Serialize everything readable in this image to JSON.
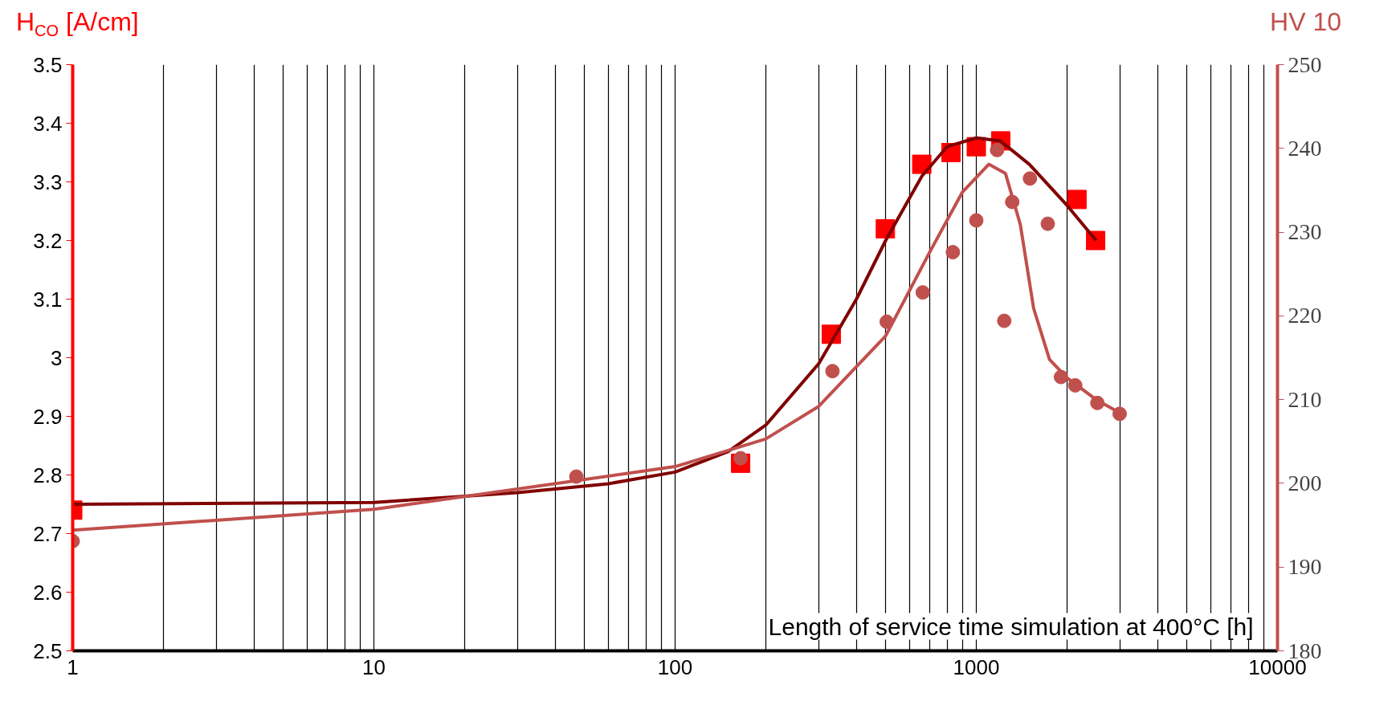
{
  "chart_data": {
    "type": "scatter",
    "xlabel": "Length of service time simulation at 400°C [h]",
    "ylabel": "H$_{CO}$ [A/cm]",
    "y2label": "HV 10",
    "log": "x",
    "grid": "x",
    "xlim": [
      1,
      10000
    ],
    "xticks": [
      1,
      {
        "value": 2,
        "label": null
      },
      {
        "value": 3,
        "label": null
      },
      {
        "value": 4,
        "label": null
      },
      {
        "value": 5,
        "label": null
      },
      {
        "value": 6,
        "label": null
      },
      {
        "value": 7,
        "label": null
      },
      {
        "value": 8,
        "label": null
      },
      {
        "value": 9,
        "label": null
      },
      10,
      {
        "value": 20,
        "label": null
      },
      {
        "value": 30,
        "label": null
      },
      {
        "value": 40,
        "label": null
      },
      {
        "value": 50,
        "label": null
      },
      {
        "value": 60,
        "label": null
      },
      {
        "value": 70,
        "label": null
      },
      {
        "value": 80,
        "label": null
      },
      {
        "value": 90,
        "label": null
      },
      100,
      {
        "value": 200,
        "label": null
      },
      {
        "value": 300,
        "label": null
      },
      {
        "value": 400,
        "label": null
      },
      {
        "value": 500,
        "label": null
      },
      {
        "value": 600,
        "label": null
      },
      {
        "value": 700,
        "label": null
      },
      {
        "value": 800,
        "label": null
      },
      {
        "value": 900,
        "label": null
      },
      1000,
      {
        "value": 2000,
        "label": null
      },
      {
        "value": 3000,
        "label": null
      },
      {
        "value": 4000,
        "label": null
      },
      {
        "value": 5000,
        "label": null
      },
      {
        "value": 6000,
        "label": null
      },
      {
        "value": 7000,
        "label": null
      },
      {
        "value": 8000,
        "label": null
      },
      {
        "value": 9000,
        "label": null
      },
      10000
    ],
    "ylim": [
      2.5,
      3.5
    ],
    "yticks": [
      2.5,
      2.6,
      2.7,
      2.8,
      2.9,
      {
        "value": 3.0,
        "label": "3"
      },
      3.1,
      3.2,
      3.3,
      3.4,
      3.5
    ],
    "y2lim": [
      180,
      250
    ],
    "y2ticks": [
      180,
      190,
      200,
      210,
      220,
      230,
      240,
      250
    ],
    "series": [
      {
        "type": "line",
        "color": "#800000",
        "marker": "none",
        "x": [
          1,
          10,
          30,
          60,
          100,
          150,
          200,
          300,
          400,
          500,
          660,
          800,
          1000,
          1200,
          1500,
          2000,
          2500
        ],
        "values": [
          2.75,
          2.753,
          2.77,
          2.785,
          2.805,
          2.84,
          2.885,
          2.99,
          3.1,
          3.2,
          3.31,
          3.36,
          3.375,
          3.37,
          3.33,
          3.26,
          3.2
        ]
      },
      {
        "type": "line",
        "axis": "y2",
        "color": "#c0504d",
        "marker": "none",
        "x": [
          1,
          10,
          100,
          200,
          300,
          500,
          700,
          900,
          1100,
          1250,
          1400,
          1550,
          1750,
          2000,
          2500,
          3000
        ],
        "values": [
          194.4,
          196.9,
          202,
          205.3,
          209.2,
          217.6,
          227.6,
          234.8,
          238.1,
          237,
          230.9,
          220.9,
          214.8,
          212.6,
          210,
          208.4
        ]
      },
      {
        "color": "#ff0000",
        "marker": "square",
        "x": [
          1,
          165,
          330,
          499,
          659,
          824,
          1000,
          1205,
          2159,
          2490
        ],
        "values": [
          2.74,
          2.82,
          3.04,
          3.22,
          3.33,
          3.35,
          3.36,
          3.37,
          3.27,
          3.2
        ]
      },
      {
        "axis": "y2",
        "color": "#c0504d",
        "marker": "circle",
        "x": [
          1,
          47,
          165,
          333,
          504,
          664,
          836,
          1000,
          1172,
          1238,
          1316,
          1507,
          1727,
          1910,
          2130,
          2523,
          2992
        ],
        "values": [
          193.1,
          200.8,
          203.0,
          213.4,
          219.3,
          222.8,
          227.6,
          231.4,
          239.8,
          219.4,
          233.6,
          236.4,
          231.0,
          212.7,
          211.7,
          209.6,
          208.3
        ]
      }
    ]
  }
}
